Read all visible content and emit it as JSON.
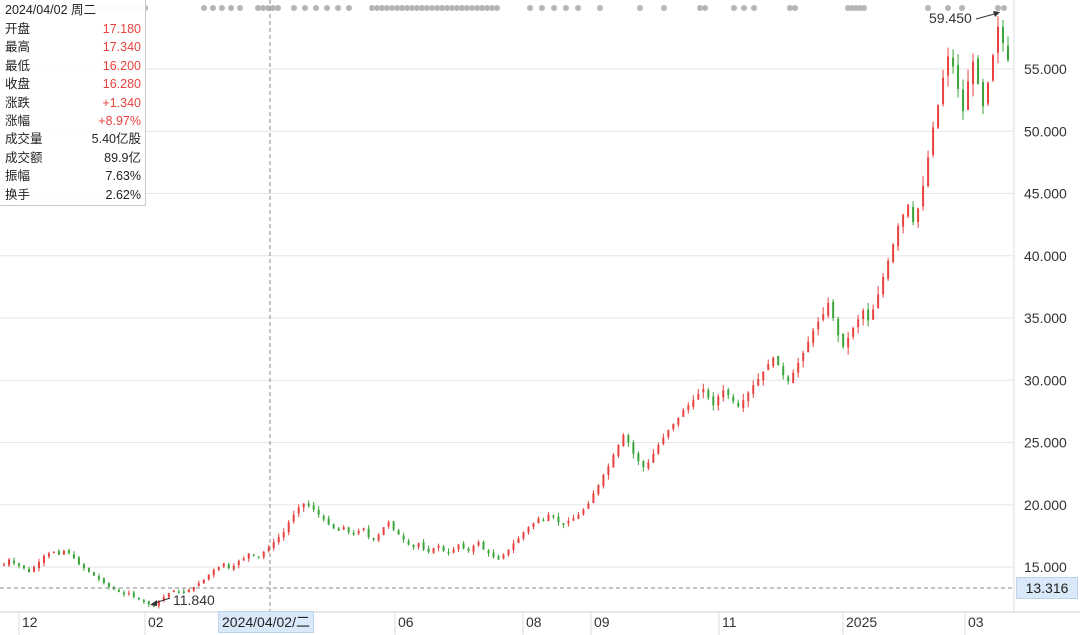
{
  "info": {
    "date": "2024/04/02 周二",
    "rows": [
      {
        "label": "开盘",
        "value": "17.180",
        "tone": "up"
      },
      {
        "label": "最高",
        "value": "17.340",
        "tone": "up"
      },
      {
        "label": "最低",
        "value": "16.200",
        "tone": "up"
      },
      {
        "label": "收盘",
        "value": "16.280",
        "tone": "up"
      },
      {
        "label": "涨跌",
        "value": "+1.340",
        "tone": "up"
      },
      {
        "label": "涨幅",
        "value": "+8.97%",
        "tone": "up"
      },
      {
        "label": "成交量",
        "value": "5.40亿股",
        "tone": "plain"
      },
      {
        "label": "成交额",
        "value": "89.9亿",
        "tone": "plain"
      },
      {
        "label": "振幅",
        "value": "7.63%",
        "tone": "plain"
      },
      {
        "label": "换手",
        "value": "2.62%",
        "tone": "plain"
      }
    ]
  },
  "crosshair": {
    "date_label": "2024/04/02/二",
    "price_label": "13.316",
    "price_value": 13.316
  },
  "chart_data": {
    "type": "candlestick",
    "title": "",
    "xlabel": "",
    "ylabel": "",
    "ylim": [
      13.3,
      59.5
    ],
    "grid": true,
    "y_ticks": [
      15,
      20,
      25,
      30,
      35,
      40,
      45,
      50,
      55
    ],
    "y_tick_labels": [
      "15.000",
      "20.000",
      "25.000",
      "30.000",
      "35.000",
      "40.000",
      "45.000",
      "50.000",
      "55.000"
    ],
    "x_labels": [
      {
        "label": "12",
        "month": "2023-12"
      },
      {
        "label": "02",
        "month": "2024-02"
      },
      {
        "label": "06",
        "month": "2024-06"
      },
      {
        "label": "08",
        "month": "2024-08"
      },
      {
        "label": "09",
        "month": "2024-09"
      },
      {
        "label": "11",
        "month": "2024-11"
      },
      {
        "label": "2025",
        "month": "2025-01"
      },
      {
        "label": "03",
        "month": "2025-03"
      }
    ],
    "annotations": [
      {
        "text": "11.840",
        "kind": "low",
        "value": 11.84
      },
      {
        "text": "59.450",
        "kind": "high",
        "value": 59.45
      }
    ],
    "up_color": "#e8423f",
    "down_color": "#3aa53a",
    "closes": [
      15.2,
      15.6,
      15.3,
      15.1,
      14.9,
      14.6,
      15.0,
      15.4,
      15.9,
      16.1,
      16.2,
      16.0,
      16.3,
      16.1,
      15.7,
      15.2,
      14.9,
      14.6,
      14.3,
      14.0,
      13.7,
      13.4,
      13.2,
      13.0,
      12.8,
      12.9,
      12.6,
      12.4,
      12.2,
      12.0,
      11.9,
      12.3,
      12.6,
      12.9,
      13.1,
      13.0,
      12.9,
      13.2,
      13.4,
      13.7,
      14.0,
      14.4,
      14.8,
      15.0,
      15.3,
      14.9,
      15.1,
      15.5,
      15.7,
      16.1,
      15.9,
      15.8,
      16.2,
      16.6,
      17.0,
      17.4,
      17.8,
      18.6,
      19.2,
      19.8,
      20.1,
      19.9,
      19.6,
      19.2,
      18.8,
      18.4,
      18.1,
      17.9,
      18.2,
      17.8,
      17.6,
      17.9,
      18.1,
      17.4,
      17.2,
      17.6,
      18.2,
      18.6,
      18.0,
      17.6,
      17.2,
      16.8,
      16.6,
      16.9,
      16.4,
      16.2,
      16.5,
      16.7,
      16.3,
      16.1,
      16.4,
      16.8,
      16.5,
      16.3,
      16.7,
      17.0,
      16.4,
      16.1,
      15.8,
      15.6,
      16.0,
      16.4,
      16.9,
      17.3,
      17.8,
      18.2,
      18.5,
      18.9,
      18.8,
      19.2,
      19.0,
      18.6,
      18.4,
      18.7,
      18.9,
      19.2,
      19.6,
      20.1,
      20.9,
      21.6,
      22.4,
      23.1,
      24.0,
      24.8,
      25.6,
      25.0,
      24.1,
      23.5,
      23.0,
      23.4,
      24.1,
      24.8,
      25.4,
      26.0,
      26.5,
      27.0,
      27.6,
      28.0,
      28.4,
      28.9,
      29.3,
      28.6,
      28.0,
      28.7,
      29.2,
      28.8,
      28.3,
      27.9,
      28.4,
      29.0,
      29.6,
      30.1,
      30.7,
      31.3,
      31.8,
      31.2,
      30.4,
      29.9,
      30.6,
      31.4,
      32.2,
      33.1,
      34.0,
      34.7,
      35.3,
      36.2,
      35.0,
      33.6,
      32.7,
      33.4,
      34.2,
      34.9,
      35.6,
      34.8,
      35.7,
      36.9,
      38.3,
      39.6,
      40.9,
      42.4,
      43.3,
      44.1,
      42.7,
      43.8,
      45.6,
      47.9,
      50.3,
      52.1,
      54.3,
      56.0,
      55.2,
      53.4,
      51.6,
      54.0,
      55.6,
      53.8,
      52.0,
      53.9,
      56.1,
      58.4,
      57.1,
      55.7
    ]
  }
}
